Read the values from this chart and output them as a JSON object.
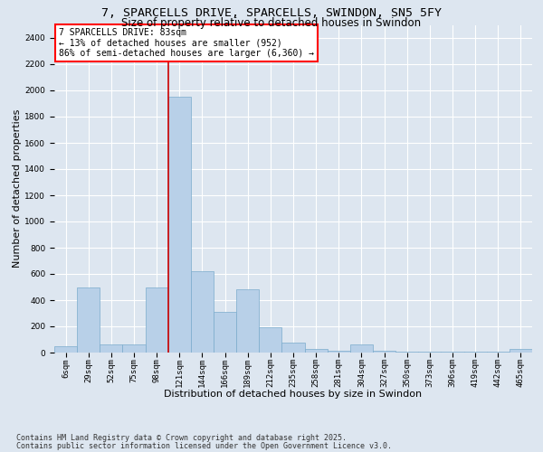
{
  "title_line1": "7, SPARCELLS DRIVE, SPARCELLS, SWINDON, SN5 5FY",
  "title_line2": "Size of property relative to detached houses in Swindon",
  "xlabel": "Distribution of detached houses by size in Swindon",
  "ylabel": "Number of detached properties",
  "categories": [
    "6sqm",
    "29sqm",
    "52sqm",
    "75sqm",
    "98sqm",
    "121sqm",
    "144sqm",
    "166sqm",
    "189sqm",
    "212sqm",
    "235sqm",
    "258sqm",
    "281sqm",
    "304sqm",
    "327sqm",
    "350sqm",
    "373sqm",
    "396sqm",
    "419sqm",
    "442sqm",
    "465sqm"
  ],
  "values": [
    50,
    500,
    60,
    60,
    500,
    1950,
    620,
    310,
    480,
    195,
    75,
    25,
    15,
    60,
    15,
    10,
    5,
    5,
    5,
    5,
    25
  ],
  "bar_color": "#b8d0e8",
  "bar_edge_color": "#7aabcc",
  "bar_edge_width": 0.5,
  "vline_x": 4.5,
  "vline_color": "#cc0000",
  "ylim": [
    0,
    2500
  ],
  "yticks": [
    0,
    200,
    400,
    600,
    800,
    1000,
    1200,
    1400,
    1600,
    1800,
    2000,
    2200,
    2400
  ],
  "bg_color": "#dde6f0",
  "plot_bg_color": "#dde6f0",
  "grid_color": "#ffffff",
  "annotation_text": "7 SPARCELLS DRIVE: 83sqm\n← 13% of detached houses are smaller (952)\n86% of semi-detached houses are larger (6,360) →",
  "footer_line1": "Contains HM Land Registry data © Crown copyright and database right 2025.",
  "footer_line2": "Contains public sector information licensed under the Open Government Licence v3.0.",
  "title_fontsize": 9.5,
  "subtitle_fontsize": 8.5,
  "axis_label_fontsize": 8,
  "tick_fontsize": 6.5,
  "annotation_fontsize": 7,
  "footer_fontsize": 6
}
